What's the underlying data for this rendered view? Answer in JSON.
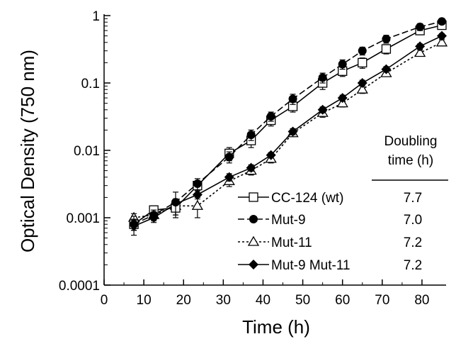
{
  "chart_data": {
    "type": "line",
    "xlabel": "Time (h)",
    "ylabel": "Optical Density (750 nm)",
    "xlim": [
      0,
      85
    ],
    "ylim": [
      0.0001,
      1
    ],
    "yscale": "log",
    "grid": false,
    "x_ticks": [
      0,
      10,
      20,
      30,
      40,
      50,
      60,
      70,
      80
    ],
    "y_ticks": [
      {
        "value": 0.0001,
        "label": "0.0001"
      },
      {
        "value": 0.001,
        "label": "0.001"
      },
      {
        "value": 0.01,
        "label": "0.01"
      },
      {
        "value": 0.1,
        "label": "0.1"
      },
      {
        "value": 1,
        "label": "1"
      }
    ],
    "legend_position": "bottom-right",
    "table_header": [
      "Doubling",
      "time (h)"
    ],
    "series": [
      {
        "name": "CC-124 (wt)",
        "doubling_time": "7.7",
        "marker": "open-square",
        "line": "solid",
        "x": [
          7.5,
          12.5,
          18,
          23.5,
          31.5,
          37,
          42,
          47.5,
          55,
          60,
          65,
          71,
          79.5,
          85
        ],
        "y": [
          0.0008,
          0.0013,
          0.0014,
          0.003,
          0.009,
          0.014,
          0.028,
          0.045,
          0.1,
          0.15,
          0.2,
          0.32,
          0.6,
          0.72
        ],
        "err": [
          0.00015,
          0.0002,
          0.0003,
          0.0004,
          0.002,
          0.003,
          0.005,
          0.008,
          0.02,
          0.025,
          0.035,
          0.05,
          0.08,
          0.08
        ]
      },
      {
        "name": "Mut-9",
        "doubling_time": "7.0",
        "marker": "filled-circle",
        "line": "dashed",
        "x": [
          7.5,
          12.5,
          18,
          23.5,
          31.5,
          37,
          42,
          47.5,
          55,
          60,
          65,
          71,
          79.5,
          85
        ],
        "y": [
          0.0008,
          0.0011,
          0.0017,
          0.0032,
          0.008,
          0.017,
          0.032,
          0.058,
          0.12,
          0.19,
          0.3,
          0.45,
          0.68,
          0.82
        ],
        "err": [
          0.00025,
          0.0002,
          0.0007,
          0.0006,
          0.0015,
          0.003,
          0.005,
          0.01,
          0.02,
          0.03,
          0.04,
          0.06,
          0.08,
          0.08
        ]
      },
      {
        "name": "Mut-11",
        "doubling_time": "7.2",
        "marker": "open-triangle",
        "line": "dotted",
        "x": [
          7.5,
          12.5,
          18,
          23.5,
          31.5,
          37,
          42,
          47.5,
          55,
          60,
          65,
          71,
          79.5,
          85
        ],
        "y": [
          0.001,
          0.0011,
          0.0015,
          0.0015,
          0.0035,
          0.005,
          0.0075,
          0.018,
          0.036,
          0.05,
          0.08,
          0.14,
          0.28,
          0.4
        ],
        "err": [
          0.00015,
          0.00015,
          0.0004,
          0.0005,
          0.0006,
          0.0007,
          0.001,
          0.002,
          0.005,
          0.006,
          0.01,
          0.015,
          0.03,
          0.04
        ]
      },
      {
        "name": "Mut-9 Mut-11",
        "doubling_time": "7.2",
        "marker": "filled-diamond",
        "line": "solid",
        "x": [
          7.5,
          12.5,
          18,
          23.5,
          31.5,
          37,
          42,
          47.5,
          55,
          60,
          65,
          71,
          79.5,
          85
        ],
        "y": [
          0.00075,
          0.001,
          0.0016,
          0.0022,
          0.004,
          0.0055,
          0.0085,
          0.019,
          0.04,
          0.06,
          0.1,
          0.16,
          0.35,
          0.5
        ],
        "err": [
          0.0001,
          0.00015,
          0.0003,
          0.0003,
          0.0005,
          0.0006,
          0.0008,
          0.002,
          0.004,
          0.006,
          0.01,
          0.015,
          0.03,
          0.04
        ]
      }
    ]
  }
}
